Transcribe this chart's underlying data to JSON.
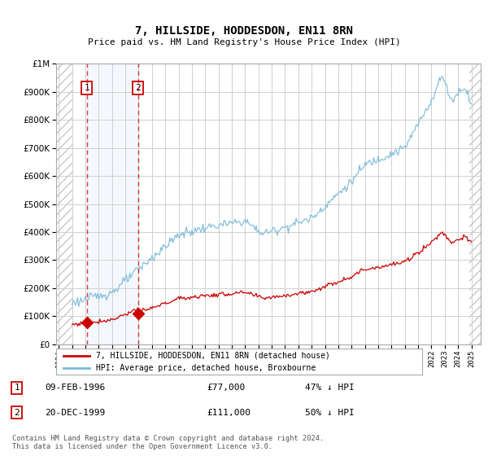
{
  "title": "7, HILLSIDE, HODDESDON, EN11 8RN",
  "subtitle": "Price paid vs. HM Land Registry's House Price Index (HPI)",
  "transaction1": {
    "date": "09-FEB-1996",
    "price": 77000,
    "year": 1996.12
  },
  "transaction2": {
    "date": "20-DEC-1999",
    "price": 111000,
    "year": 1999.97
  },
  "label1": "47% ↓ HPI",
  "label2": "50% ↓ HPI",
  "legend_entry1": "7, HILLSIDE, HODDESDON, EN11 8RN (detached house)",
  "legend_entry2": "HPI: Average price, detached house, Broxbourne",
  "footer": "Contains HM Land Registry data © Crown copyright and database right 2024.\nThis data is licensed under the Open Government Licence v3.0.",
  "ylim": [
    0,
    1000000
  ],
  "xlim_start": 1993.8,
  "xlim_end": 2025.7,
  "hpi_color": "#7ab8d9",
  "price_color": "#cc0000",
  "background_color": "#ffffff",
  "grid_color": "#d0d0d0"
}
